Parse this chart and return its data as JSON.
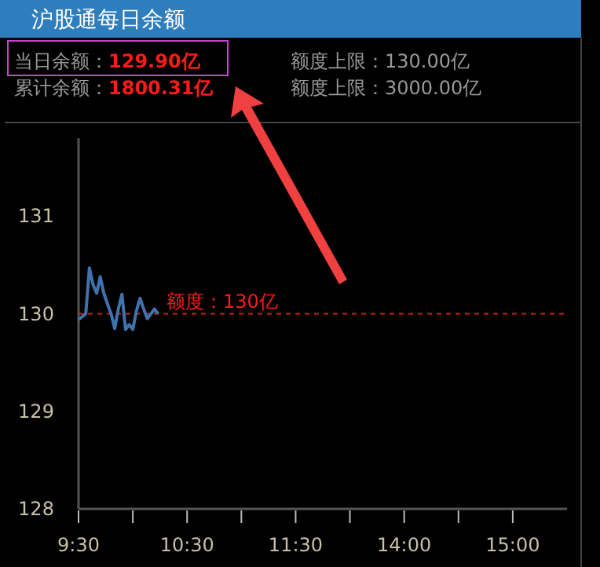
{
  "chart_data": {
    "type": "line",
    "title": "沪股通每日余额",
    "annotations": [
      "当日余额：129.90亿",
      "累计余额：1800.31亿",
      "额度上限：130.00亿",
      "额度上限：3000.00亿"
    ],
    "categories": [
      "9:30",
      null,
      null,
      null,
      null,
      null,
      null,
      null,
      null,
      null,
      null,
      null,
      null,
      null,
      null,
      null,
      null,
      null,
      null,
      null,
      null,
      null,
      null,
      null,
      null,
      null,
      null,
      null,
      null,
      null,
      "10:30",
      null,
      null,
      null,
      null,
      null,
      null,
      null,
      null,
      null,
      null,
      null,
      null,
      null,
      null,
      null,
      null,
      null,
      null,
      null,
      null,
      null,
      null,
      null,
      null,
      null,
      null,
      null,
      null,
      null,
      "11:30",
      null,
      null,
      null,
      null,
      null,
      null,
      null,
      null,
      null,
      null,
      null,
      null,
      null,
      null,
      null,
      null,
      null,
      null,
      null,
      null,
      null,
      null,
      null,
      null,
      null,
      null,
      null,
      null,
      null,
      "14:00",
      null,
      null,
      null,
      null,
      null,
      null,
      null,
      null,
      null,
      null,
      null,
      null,
      null,
      null,
      null,
      null,
      null,
      null,
      null,
      null,
      null,
      null,
      null,
      null,
      null,
      null,
      null,
      null,
      null,
      "15:00",
      null,
      null,
      null,
      null,
      null,
      null,
      null,
      null,
      null,
      null,
      null,
      null,
      null,
      null,
      null
    ],
    "series": [
      {
        "color": "#3f73ad",
        "values": [
          129.94,
          129.97,
          130.0,
          130.47,
          130.3,
          130.21,
          130.38,
          130.21,
          130.1,
          130.0,
          129.85,
          130.05,
          130.2,
          129.84,
          129.89,
          129.84,
          130.03,
          130.16,
          130.05,
          129.95,
          130.0,
          130.05,
          130.0,
          null,
          null,
          null,
          null,
          null,
          null,
          null,
          null,
          null,
          null,
          null,
          null,
          null,
          null,
          null,
          null,
          null,
          null,
          null,
          null,
          null,
          null,
          null,
          null,
          null,
          null,
          null,
          null,
          null,
          null,
          null,
          null,
          null,
          null,
          null,
          null,
          null,
          null,
          null,
          null,
          null,
          null,
          null,
          null,
          null,
          null,
          null,
          null,
          null,
          null,
          null,
          null,
          null,
          null,
          null,
          null,
          null,
          null,
          null,
          null,
          null,
          null,
          null,
          null,
          null,
          null,
          null,
          null,
          null,
          null,
          null,
          null,
          null,
          null,
          null,
          null,
          null,
          null,
          null,
          null,
          null,
          null,
          null,
          null,
          null,
          null,
          null,
          null,
          null,
          null,
          null,
          null,
          null,
          null,
          null,
          null,
          null,
          null,
          null,
          null,
          null,
          null,
          null,
          null,
          null,
          null,
          null,
          null,
          null,
          null,
          null,
          null,
          null
        ]
      }
    ],
    "ylim": [
      128,
      131.8
    ],
    "yticks": [
      128,
      129,
      130,
      131
    ],
    "ref_lines": [
      {
        "axis": "y",
        "value": 130,
        "label": "额度：130亿",
        "color": "#cc2222",
        "line_style": "dashed"
      }
    ]
  }
}
